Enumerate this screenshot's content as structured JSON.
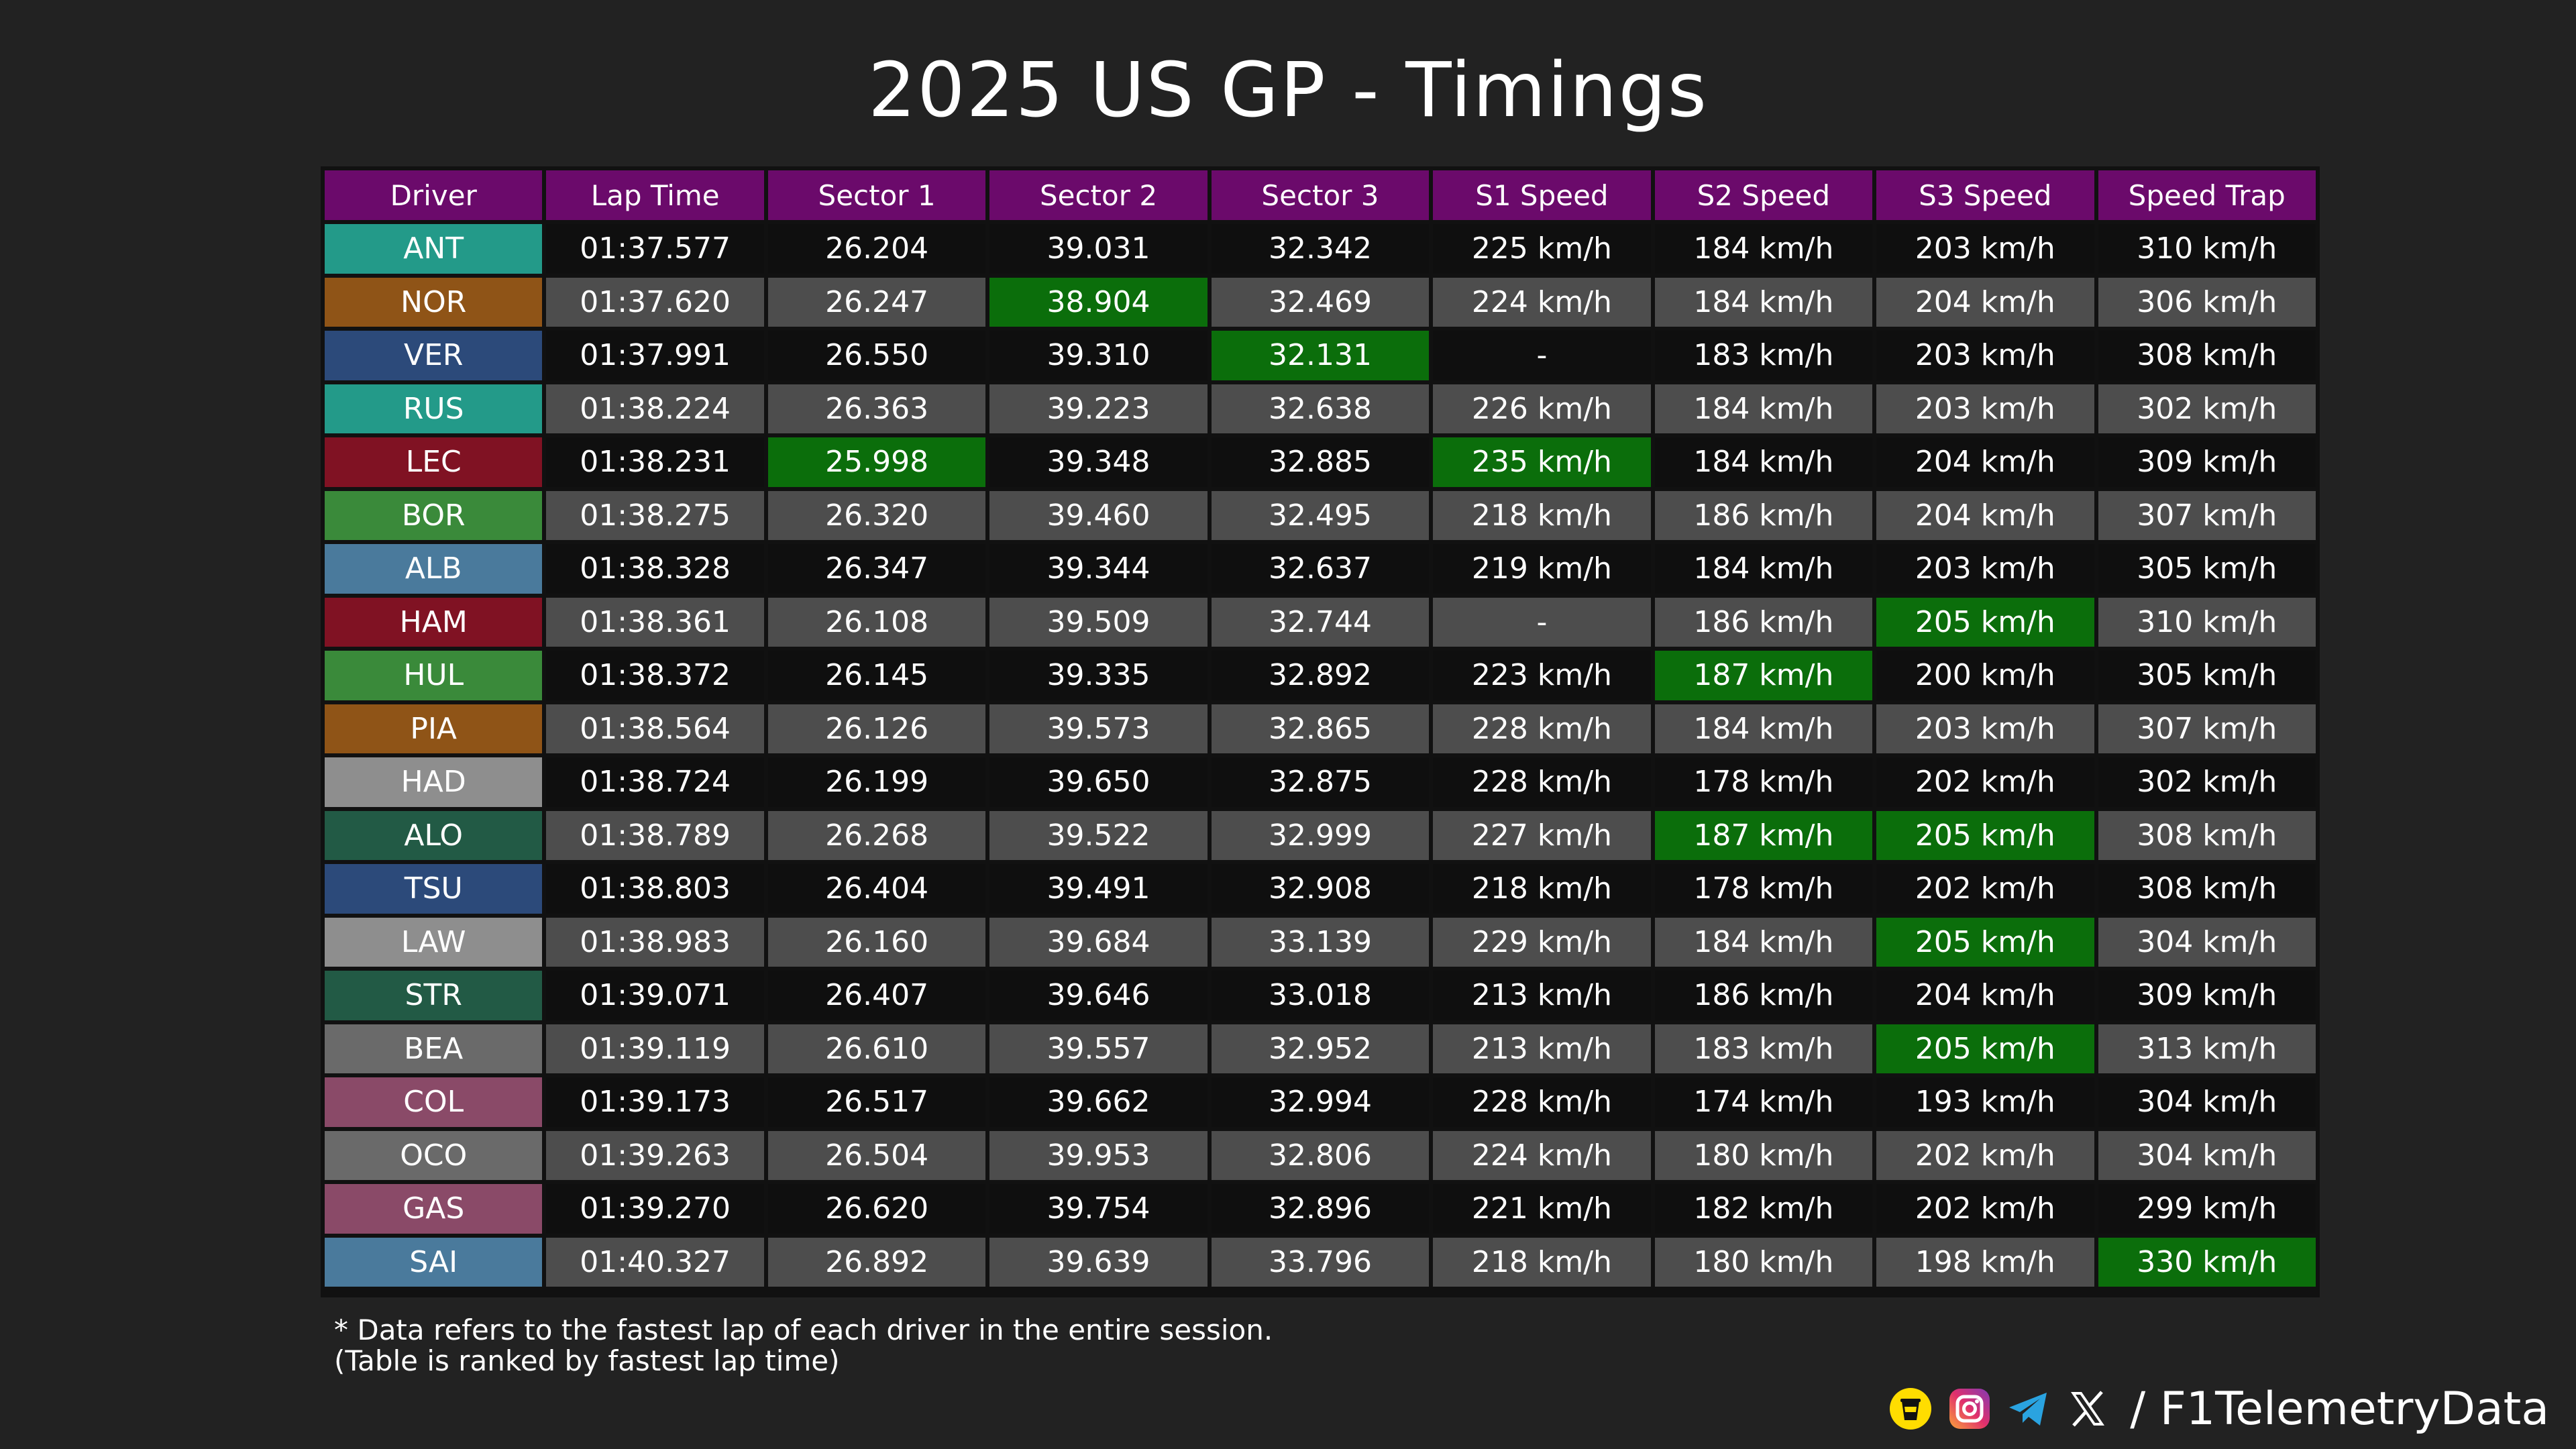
{
  "title": "2025 US GP - Timings",
  "watermark": "@F1TelemetryData",
  "footnote": {
    "line1": "* Data refers to the fastest lap of each driver in the entire session.",
    "line2": "(Table is ranked by fastest lap time)"
  },
  "social": {
    "handle": "/ F1TelemetryData",
    "icons": [
      "buymeacoffee-icon",
      "instagram-icon",
      "telegram-icon",
      "x-icon"
    ]
  },
  "colors": {
    "header": "#6b0a6b",
    "best": "#0b6e0b",
    "row_dark": "#0f0f0f",
    "row_light": "#4d4d4d",
    "teams": {
      "mercedes": "#239a89",
      "mclaren": "#8f5417",
      "redbull": "#2c4a7a",
      "ferrari": "#801223",
      "sauber": "#3a8a3a",
      "williams": "#4a7a9c",
      "racingbulls": "#8e8e8e",
      "astonmartin": "#225a45",
      "haas": "#6a6a6a",
      "alpine": "#8a4a68"
    }
  },
  "chart_data": {
    "type": "table",
    "title": "2025 US GP - Timings",
    "columns": [
      "Driver",
      "Lap Time",
      "Sector 1",
      "Sector 2",
      "Sector 3",
      "S1 Speed",
      "S2 Speed",
      "S3 Speed",
      "Speed Trap"
    ],
    "rows": [
      {
        "driver": "ANT",
        "team": "mercedes",
        "cells": [
          "01:37.577",
          "26.204",
          "39.031",
          "32.342",
          "225 km/h",
          "184 km/h",
          "203 km/h",
          "310 km/h"
        ],
        "best": []
      },
      {
        "driver": "NOR",
        "team": "mclaren",
        "cells": [
          "01:37.620",
          "26.247",
          "38.904",
          "32.469",
          "224 km/h",
          "184 km/h",
          "204 km/h",
          "306 km/h"
        ],
        "best": [
          2
        ]
      },
      {
        "driver": "VER",
        "team": "redbull",
        "cells": [
          "01:37.991",
          "26.550",
          "39.310",
          "32.131",
          "-",
          "183 km/h",
          "203 km/h",
          "308 km/h"
        ],
        "best": [
          3
        ]
      },
      {
        "driver": "RUS",
        "team": "mercedes",
        "cells": [
          "01:38.224",
          "26.363",
          "39.223",
          "32.638",
          "226 km/h",
          "184 km/h",
          "203 km/h",
          "302 km/h"
        ],
        "best": []
      },
      {
        "driver": "LEC",
        "team": "ferrari",
        "cells": [
          "01:38.231",
          "25.998",
          "39.348",
          "32.885",
          "235 km/h",
          "184 km/h",
          "204 km/h",
          "309 km/h"
        ],
        "best": [
          1,
          4
        ]
      },
      {
        "driver": "BOR",
        "team": "sauber",
        "cells": [
          "01:38.275",
          "26.320",
          "39.460",
          "32.495",
          "218 km/h",
          "186 km/h",
          "204 km/h",
          "307 km/h"
        ],
        "best": []
      },
      {
        "driver": "ALB",
        "team": "williams",
        "cells": [
          "01:38.328",
          "26.347",
          "39.344",
          "32.637",
          "219 km/h",
          "184 km/h",
          "203 km/h",
          "305 km/h"
        ],
        "best": []
      },
      {
        "driver": "HAM",
        "team": "ferrari",
        "cells": [
          "01:38.361",
          "26.108",
          "39.509",
          "32.744",
          "-",
          "186 km/h",
          "205 km/h",
          "310 km/h"
        ],
        "best": [
          6
        ]
      },
      {
        "driver": "HUL",
        "team": "sauber",
        "cells": [
          "01:38.372",
          "26.145",
          "39.335",
          "32.892",
          "223 km/h",
          "187 km/h",
          "200 km/h",
          "305 km/h"
        ],
        "best": [
          5
        ]
      },
      {
        "driver": "PIA",
        "team": "mclaren",
        "cells": [
          "01:38.564",
          "26.126",
          "39.573",
          "32.865",
          "228 km/h",
          "184 km/h",
          "203 km/h",
          "307 km/h"
        ],
        "best": []
      },
      {
        "driver": "HAD",
        "team": "racingbulls",
        "cells": [
          "01:38.724",
          "26.199",
          "39.650",
          "32.875",
          "228 km/h",
          "178 km/h",
          "202 km/h",
          "302 km/h"
        ],
        "best": []
      },
      {
        "driver": "ALO",
        "team": "astonmartin",
        "cells": [
          "01:38.789",
          "26.268",
          "39.522",
          "32.999",
          "227 km/h",
          "187 km/h",
          "205 km/h",
          "308 km/h"
        ],
        "best": [
          5,
          6
        ]
      },
      {
        "driver": "TSU",
        "team": "redbull",
        "cells": [
          "01:38.803",
          "26.404",
          "39.491",
          "32.908",
          "218 km/h",
          "178 km/h",
          "202 km/h",
          "308 km/h"
        ],
        "best": []
      },
      {
        "driver": "LAW",
        "team": "racingbulls",
        "cells": [
          "01:38.983",
          "26.160",
          "39.684",
          "33.139",
          "229 km/h",
          "184 km/h",
          "205 km/h",
          "304 km/h"
        ],
        "best": [
          6
        ]
      },
      {
        "driver": "STR",
        "team": "astonmartin",
        "cells": [
          "01:39.071",
          "26.407",
          "39.646",
          "33.018",
          "213 km/h",
          "186 km/h",
          "204 km/h",
          "309 km/h"
        ],
        "best": []
      },
      {
        "driver": "BEA",
        "team": "haas",
        "cells": [
          "01:39.119",
          "26.610",
          "39.557",
          "32.952",
          "213 km/h",
          "183 km/h",
          "205 km/h",
          "313 km/h"
        ],
        "best": [
          6
        ]
      },
      {
        "driver": "COL",
        "team": "alpine",
        "cells": [
          "01:39.173",
          "26.517",
          "39.662",
          "32.994",
          "228 km/h",
          "174 km/h",
          "193 km/h",
          "304 km/h"
        ],
        "best": []
      },
      {
        "driver": "OCO",
        "team": "haas",
        "cells": [
          "01:39.263",
          "26.504",
          "39.953",
          "32.806",
          "224 km/h",
          "180 km/h",
          "202 km/h",
          "304 km/h"
        ],
        "best": []
      },
      {
        "driver": "GAS",
        "team": "alpine",
        "cells": [
          "01:39.270",
          "26.620",
          "39.754",
          "32.896",
          "221 km/h",
          "182 km/h",
          "202 km/h",
          "299 km/h"
        ],
        "best": []
      },
      {
        "driver": "SAI",
        "team": "williams",
        "cells": [
          "01:40.327",
          "26.892",
          "39.639",
          "33.796",
          "218 km/h",
          "180 km/h",
          "198 km/h",
          "330 km/h"
        ],
        "best": [
          7
        ]
      }
    ]
  }
}
